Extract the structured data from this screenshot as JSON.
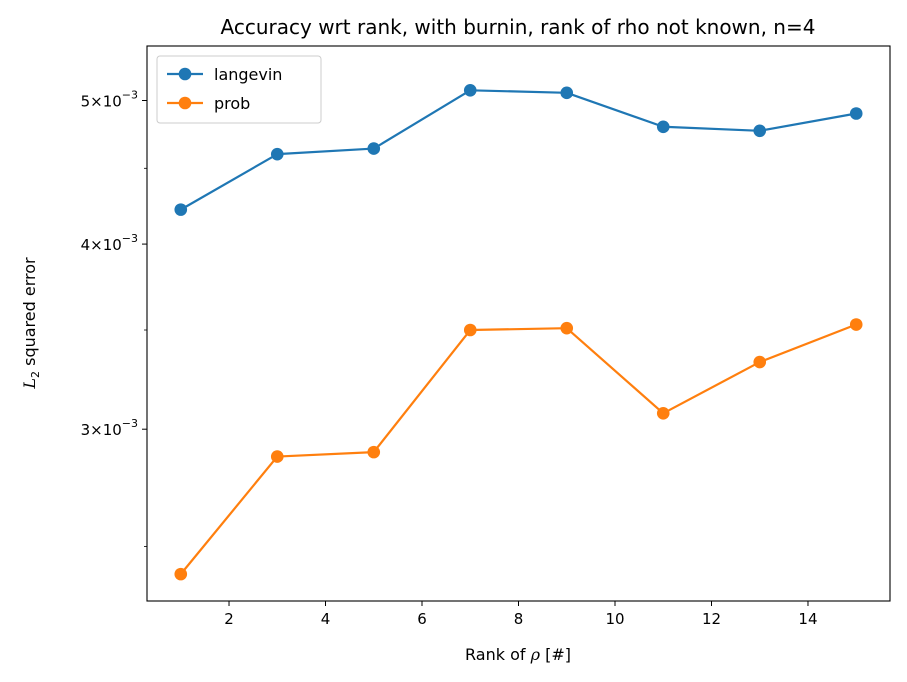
{
  "chart_data": {
    "type": "line",
    "title": "Accuracy wrt rank, with burnin, rank of rho not known, n=4",
    "xlabel": {
      "prefix": "Rank of ",
      "symbol": "ρ",
      "suffix": " [#]"
    },
    "ylabel": {
      "symbol": "L",
      "subscript": "2",
      "suffix": " squared error"
    },
    "yscale": "log",
    "xlim": [
      0.3,
      15.7
    ],
    "ylim": [
      0.002297,
      0.005442
    ],
    "x_ticks": [
      2,
      4,
      6,
      8,
      10,
      12,
      14
    ],
    "y_ticks": [
      {
        "value": 0.003,
        "mantissa": "3",
        "base": "10",
        "exponent": "−3"
      },
      {
        "value": 0.004,
        "mantissa": "4",
        "base": "10",
        "exponent": "−3"
      },
      {
        "value": 0.005,
        "mantissa": "5",
        "base": "10",
        "exponent": "−3"
      }
    ],
    "grid": false,
    "legend_position": "top-left",
    "x": [
      1,
      3,
      5,
      7,
      9,
      11,
      13,
      15
    ],
    "series": [
      {
        "name": "langevin",
        "color": "#1f77b4",
        "values": [
          0.00422,
          0.0046,
          0.00464,
          0.00508,
          0.00506,
          0.0048,
          0.00477,
          0.0049
        ]
      },
      {
        "name": "prob",
        "color": "#ff7f0e",
        "values": [
          0.002395,
          0.002875,
          0.002895,
          0.0035,
          0.00351,
          0.003075,
          0.00333,
          0.00353
        ]
      }
    ]
  }
}
